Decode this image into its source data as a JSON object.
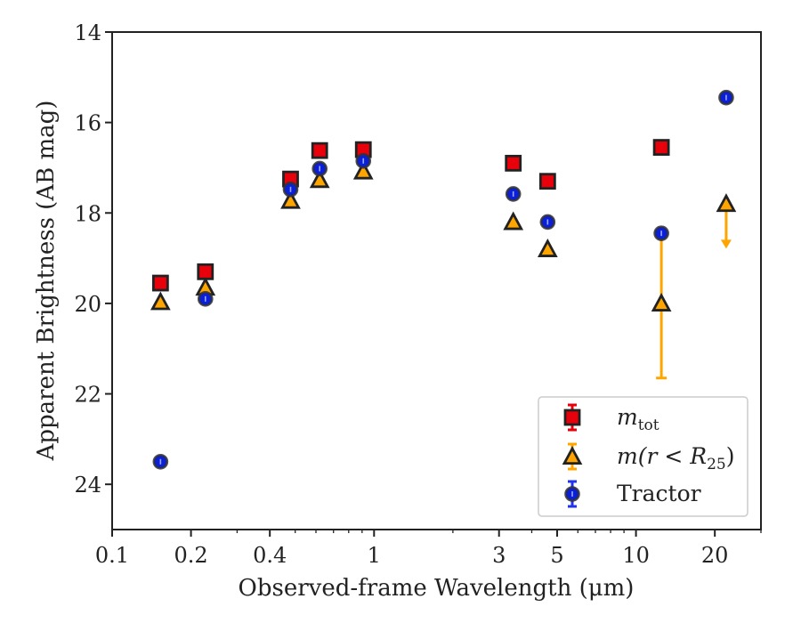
{
  "chart_data": {
    "type": "scatter",
    "xscale": "log",
    "yaxis_inverted": true,
    "xlim": [
      0.1,
      30
    ],
    "ylim": [
      25,
      14
    ],
    "xlabel": "Observed-frame Wavelength (μm)",
    "ylabel": "Apparent Brightness (AB mag)",
    "x_ticks": [
      0.1,
      0.2,
      0.4,
      1,
      3,
      5,
      10,
      20
    ],
    "x_tick_labels": [
      "0.1",
      "0.2",
      "0.4",
      "1",
      "3",
      "5",
      "10",
      "20"
    ],
    "y_ticks": [
      14,
      16,
      18,
      20,
      22,
      24
    ],
    "y_tick_labels": [
      "14",
      "16",
      "18",
      "20",
      "22",
      "24"
    ],
    "grid": false,
    "legend_position": "bottom-right",
    "series": [
      {
        "name": "m_tot",
        "marker": "square",
        "color": "#e8000b",
        "edge_color": "#222222",
        "points": [
          {
            "x": 0.153,
            "y": 19.55
          },
          {
            "x": 0.227,
            "y": 19.3
          },
          {
            "x": 0.48,
            "y": 17.25
          },
          {
            "x": 0.62,
            "y": 16.62
          },
          {
            "x": 0.91,
            "y": 16.6
          },
          {
            "x": 3.4,
            "y": 16.9
          },
          {
            "x": 4.6,
            "y": 17.3
          },
          {
            "x": 12.5,
            "y": 16.55
          }
        ]
      },
      {
        "name": "m(r < R25)",
        "marker": "triangle",
        "color": "#ffa500",
        "edge_color": "#222222",
        "points": [
          {
            "x": 0.153,
            "y": 19.97
          },
          {
            "x": 0.227,
            "y": 19.65
          },
          {
            "x": 0.48,
            "y": 17.73
          },
          {
            "x": 0.62,
            "y": 17.27
          },
          {
            "x": 0.91,
            "y": 17.08
          },
          {
            "x": 3.4,
            "y": 18.2
          },
          {
            "x": 4.6,
            "y": 18.8
          },
          {
            "x": 12.5,
            "y": 20.0,
            "yerr_low": 21.65,
            "yerr_high": 18.45
          },
          {
            "x": 22.1,
            "y": 17.8,
            "upper_limit_to": 18.75
          }
        ]
      },
      {
        "name": "Tractor",
        "marker": "circle",
        "color": "#0a1fd6",
        "edge_color": "#333333",
        "points": [
          {
            "x": 0.153,
            "y": 23.5
          },
          {
            "x": 0.227,
            "y": 19.9
          },
          {
            "x": 0.48,
            "y": 17.48
          },
          {
            "x": 0.62,
            "y": 17.02
          },
          {
            "x": 0.91,
            "y": 16.85
          },
          {
            "x": 3.4,
            "y": 17.58
          },
          {
            "x": 4.6,
            "y": 18.2
          },
          {
            "x": 12.5,
            "y": 18.45
          },
          {
            "x": 22.1,
            "y": 15.45
          }
        ]
      }
    ],
    "legend": [
      {
        "label_main": "m",
        "label_sub": "tot",
        "marker": "square",
        "color": "#e8000b",
        "errbar_color": "#e8000b"
      },
      {
        "label_main": "m(r < R",
        "label_sub": "25",
        "label_tail": ")",
        "marker": "triangle",
        "color": "#ffa500",
        "errbar_color": "#ffa500"
      },
      {
        "label_main": "Tractor",
        "label_sub": "",
        "marker": "circle",
        "color": "#0a1fd6",
        "errbar_color": "#2233ee"
      }
    ]
  }
}
